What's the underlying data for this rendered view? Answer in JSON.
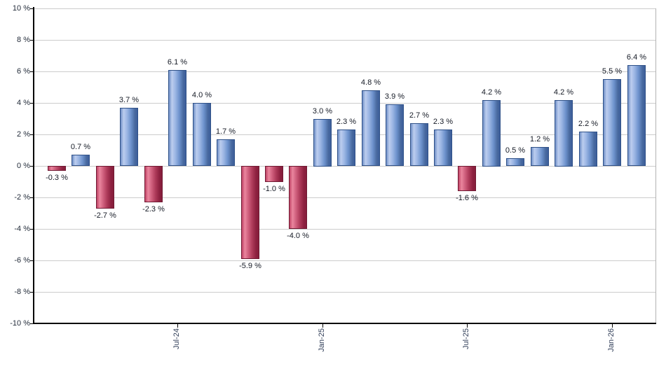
{
  "chart_data": {
    "type": "bar",
    "title": "",
    "unit": "%",
    "values": [
      -0.3,
      0.7,
      -2.7,
      3.7,
      -2.3,
      6.1,
      4.0,
      1.7,
      -5.9,
      -1.0,
      -4.0,
      3.0,
      2.3,
      4.8,
      3.9,
      2.7,
      2.3,
      -1.6,
      4.2,
      0.5,
      1.2,
      4.2,
      2.2,
      5.5,
      6.4
    ],
    "labels": [
      "-0.3 %",
      "0.7 %",
      "-2.7 %",
      "3.7 %",
      "-2.3 %",
      "6.1 %",
      "4.0 %",
      "1.7 %",
      "-5.9 %",
      "-1.0 %",
      "-4.0 %",
      "3.0 %",
      "2.3 %",
      "4.8 %",
      "3.9 %",
      "2.7 %",
      "2.3 %",
      "-1.6 %",
      "4.2 %",
      "0.5 %",
      "1.2 %",
      "4.2 %",
      "2.2 %",
      "5.5 %",
      "6.4 %"
    ],
    "x_tick_labels": [
      {
        "bar_index": 5,
        "label": "Jul-24"
      },
      {
        "bar_index": 11,
        "label": "Jan-25"
      },
      {
        "bar_index": 17,
        "label": "Jul-25"
      },
      {
        "bar_index": 23,
        "label": "Jan-26"
      }
    ],
    "y_tick_values": [
      10,
      8,
      6,
      4,
      2,
      0,
      -2,
      -4,
      -6,
      -8,
      -10
    ],
    "y_tick_labels": [
      "10 %",
      "8 %",
      "6 %",
      "4 %",
      "2 %",
      "0 %",
      "-2 %",
      "-4 %",
      "-6 %",
      "-8 %",
      "-10 %"
    ],
    "ylim": [
      -10,
      10
    ],
    "grid": "horizontal",
    "legend": "none",
    "colors": {
      "positive_bar": "#6f93cc",
      "negative_bar": "#c04a6b",
      "positive_border": "#2f5188",
      "negative_border": "#701a33",
      "gridline": "#cccccc",
      "axis": "#000000",
      "value_label_text": "#161b26",
      "axis_label_text": "#33405a"
    }
  }
}
